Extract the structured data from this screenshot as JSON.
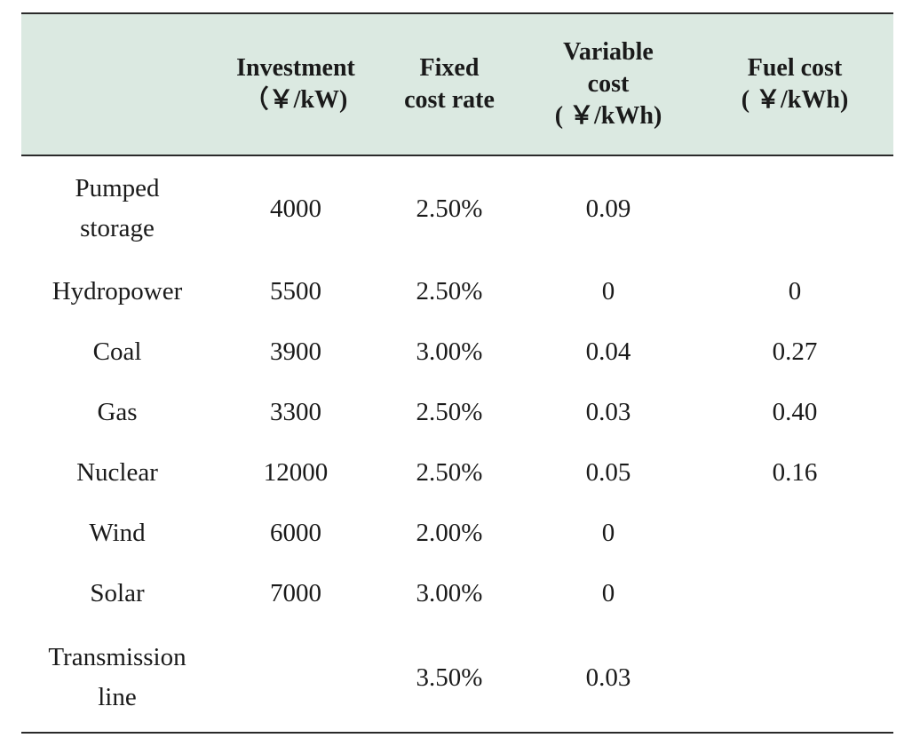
{
  "table": {
    "headers": [
      {
        "lines": [
          ""
        ]
      },
      {
        "lines": [
          "Investment",
          "（￥/kW)"
        ]
      },
      {
        "lines": [
          "Fixed",
          "cost rate"
        ]
      },
      {
        "lines": [
          "Variable",
          "cost",
          "( ￥/kWh)"
        ]
      },
      {
        "lines": [
          "Fuel cost",
          "( ￥/kWh)"
        ]
      }
    ],
    "rows": [
      {
        "name_lines": [
          "Pumped",
          "storage"
        ],
        "investment": "4000",
        "fixed": "2.50%",
        "variable": "0.09",
        "fuel": ""
      },
      {
        "name_lines": [
          "Hydropower"
        ],
        "investment": "5500",
        "fixed": "2.50%",
        "variable": "0",
        "fuel": "0"
      },
      {
        "name_lines": [
          "Coal"
        ],
        "investment": "3900",
        "fixed": "3.00%",
        "variable": "0.04",
        "fuel": "0.27"
      },
      {
        "name_lines": [
          "Gas"
        ],
        "investment": "3300",
        "fixed": "2.50%",
        "variable": "0.03",
        "fuel": "0.40"
      },
      {
        "name_lines": [
          "Nuclear"
        ],
        "investment": "12000",
        "fixed": "2.50%",
        "variable": "0.05",
        "fuel": "0.16"
      },
      {
        "name_lines": [
          "Wind"
        ],
        "investment": "6000",
        "fixed": "2.00%",
        "variable": "0",
        "fuel": ""
      },
      {
        "name_lines": [
          "Solar"
        ],
        "investment": "7000",
        "fixed": "3.00%",
        "variable": "0",
        "fuel": ""
      },
      {
        "name_lines": [
          "Transmission",
          "line"
        ],
        "investment": "",
        "fixed": "3.50%",
        "variable": "0.03",
        "fuel": ""
      }
    ]
  },
  "colors": {
    "header_bg": "#dbe9e1",
    "rule": "#2a2a2a",
    "text": "#1a1a1a"
  }
}
